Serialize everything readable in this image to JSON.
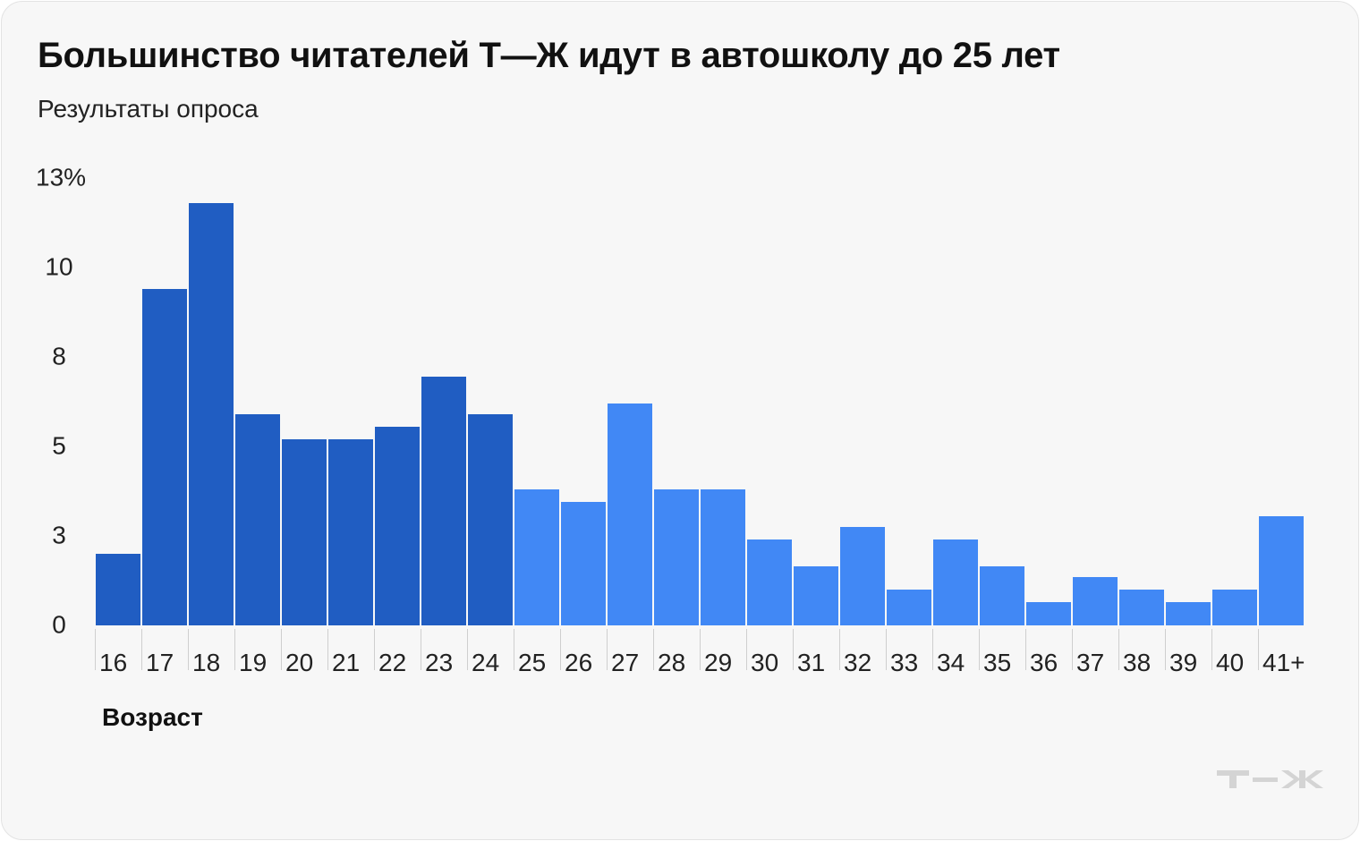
{
  "header": {
    "title": "Большинство читателей Т—Ж идут в автошколу до 25 лет",
    "subtitle": "Результаты опроса"
  },
  "logo": {
    "text": "Т—Ж",
    "icon": "tj-logo-icon"
  },
  "colors": {
    "background": "#f7f7f7",
    "under_25": "#205dc2",
    "over_25": "#4188f5",
    "text": "#111111",
    "axis_ticks": "#cfcfcf",
    "logo": "#d4d4d4"
  },
  "chart_data": {
    "type": "bar",
    "title": "Большинство читателей Т—Ж идут в автошколу до 25 лет",
    "subtitle": "Результаты опроса",
    "xlabel": "Возраст",
    "ylabel": "",
    "y_ticks": [
      "13%",
      "10",
      "8",
      "5",
      "3",
      "0"
    ],
    "y_tick_values": [
      12.5,
      10,
      7.5,
      5,
      2.5,
      0
    ],
    "ylim": [
      0,
      12.5
    ],
    "grid": false,
    "categories": [
      "16",
      "17",
      "18",
      "19",
      "20",
      "21",
      "22",
      "23",
      "24",
      "25",
      "26",
      "27",
      "28",
      "29",
      "30",
      "31",
      "32",
      "33",
      "34",
      "35",
      "36",
      "37",
      "38",
      "39",
      "40",
      "41+"
    ],
    "values": [
      2.0,
      9.4,
      11.8,
      5.9,
      5.2,
      5.2,
      5.55,
      6.95,
      5.9,
      3.8,
      3.45,
      6.2,
      3.8,
      3.8,
      2.4,
      1.65,
      2.75,
      1.0,
      2.4,
      1.65,
      0.65,
      1.35,
      1.0,
      0.65,
      1.0,
      3.05
    ],
    "highlight_groups": [
      {
        "range": [
          "16",
          "24"
        ],
        "color": "#205dc2"
      },
      {
        "range": [
          "25",
          "41+"
        ],
        "color": "#4188f5"
      }
    ]
  }
}
